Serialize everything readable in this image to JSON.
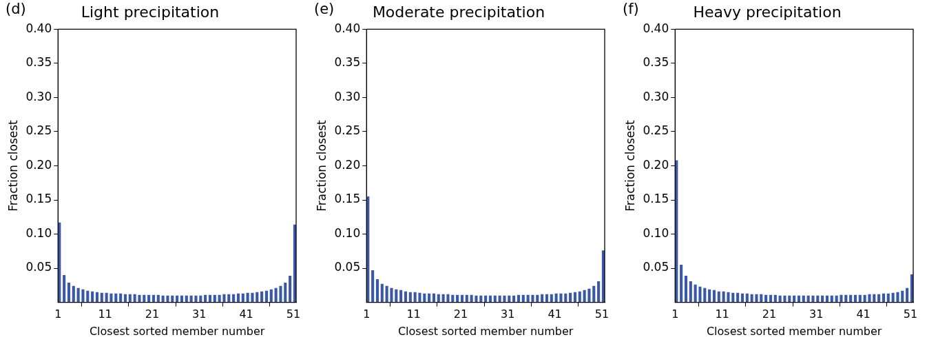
{
  "chart_data": [
    {
      "type": "bar",
      "title": "Light precipitation",
      "annotations": [
        "(d)"
      ],
      "xlabel": "Closest sorted member number",
      "ylabel": "Fraction closest",
      "color": "#3a57a8",
      "grid": false,
      "legend": false,
      "x": [
        1,
        2,
        3,
        4,
        5,
        6,
        7,
        8,
        9,
        10,
        11,
        12,
        13,
        14,
        15,
        16,
        17,
        18,
        19,
        20,
        21,
        22,
        23,
        24,
        25,
        26,
        27,
        28,
        29,
        30,
        31,
        32,
        33,
        34,
        35,
        36,
        37,
        38,
        39,
        40,
        41,
        42,
        43,
        44,
        45,
        46,
        47,
        48,
        49,
        50,
        51
      ],
      "values": [
        0.117,
        0.04,
        0.029,
        0.024,
        0.021,
        0.019,
        0.017,
        0.016,
        0.015,
        0.014,
        0.014,
        0.013,
        0.013,
        0.013,
        0.012,
        0.012,
        0.012,
        0.011,
        0.011,
        0.011,
        0.011,
        0.011,
        0.01,
        0.01,
        0.01,
        0.01,
        0.01,
        0.01,
        0.01,
        0.01,
        0.01,
        0.011,
        0.011,
        0.011,
        0.011,
        0.012,
        0.012,
        0.012,
        0.013,
        0.013,
        0.014,
        0.014,
        0.015,
        0.016,
        0.017,
        0.019,
        0.021,
        0.024,
        0.029,
        0.039,
        0.114
      ],
      "xlim": [
        1,
        51.6
      ],
      "xticks": [
        1,
        11,
        21,
        31,
        41,
        51
      ],
      "ylim": [
        0,
        0.4
      ],
      "yticks": [
        {
          "value": 0.05,
          "label": "0.05"
        },
        {
          "value": 0.1,
          "label": "0.10"
        },
        {
          "value": 0.15,
          "label": "0.15"
        },
        {
          "value": 0.2,
          "label": "0.20"
        },
        {
          "value": 0.25,
          "label": "0.25"
        },
        {
          "value": 0.3,
          "label": "0.30"
        },
        {
          "value": 0.35,
          "label": "0.35"
        },
        {
          "value": 0.4,
          "label": "0.40"
        }
      ]
    },
    {
      "type": "bar",
      "title": "Moderate precipitation",
      "annotations": [
        "(e)"
      ],
      "xlabel": "Closest sorted member number",
      "ylabel": "Fraction closest",
      "color": "#3a57a8",
      "grid": false,
      "legend": false,
      "x": [
        1,
        2,
        3,
        4,
        5,
        6,
        7,
        8,
        9,
        10,
        11,
        12,
        13,
        14,
        15,
        16,
        17,
        18,
        19,
        20,
        21,
        22,
        23,
        24,
        25,
        26,
        27,
        28,
        29,
        30,
        31,
        32,
        33,
        34,
        35,
        36,
        37,
        38,
        39,
        40,
        41,
        42,
        43,
        44,
        45,
        46,
        47,
        48,
        49,
        50,
        51
      ],
      "values": [
        0.155,
        0.047,
        0.034,
        0.027,
        0.024,
        0.021,
        0.019,
        0.018,
        0.016,
        0.015,
        0.015,
        0.014,
        0.013,
        0.013,
        0.013,
        0.012,
        0.012,
        0.012,
        0.011,
        0.011,
        0.011,
        0.011,
        0.011,
        0.01,
        0.01,
        0.01,
        0.01,
        0.01,
        0.01,
        0.01,
        0.01,
        0.01,
        0.011,
        0.011,
        0.011,
        0.011,
        0.011,
        0.012,
        0.012,
        0.012,
        0.013,
        0.013,
        0.013,
        0.014,
        0.015,
        0.016,
        0.018,
        0.02,
        0.024,
        0.031,
        0.076
      ],
      "xlim": [
        1,
        51.6
      ],
      "xticks": [
        1,
        11,
        21,
        31,
        41,
        51
      ],
      "ylim": [
        0,
        0.4
      ],
      "yticks": [
        {
          "value": 0.05,
          "label": "0.05"
        },
        {
          "value": 0.1,
          "label": "0.10"
        },
        {
          "value": 0.15,
          "label": "0.15"
        },
        {
          "value": 0.2,
          "label": "0.20"
        },
        {
          "value": 0.25,
          "label": "0.25"
        },
        {
          "value": 0.3,
          "label": "0.30"
        },
        {
          "value": 0.35,
          "label": "0.35"
        },
        {
          "value": 0.4,
          "label": "0.40"
        }
      ]
    },
    {
      "type": "bar",
      "title": "Heavy precipitation",
      "annotations": [
        "(f)"
      ],
      "xlabel": "Closest sorted member number",
      "ylabel": "Fraction closest",
      "color": "#3a57a8",
      "grid": false,
      "legend": false,
      "x": [
        1,
        2,
        3,
        4,
        5,
        6,
        7,
        8,
        9,
        10,
        11,
        12,
        13,
        14,
        15,
        16,
        17,
        18,
        19,
        20,
        21,
        22,
        23,
        24,
        25,
        26,
        27,
        28,
        29,
        30,
        31,
        32,
        33,
        34,
        35,
        36,
        37,
        38,
        39,
        40,
        41,
        42,
        43,
        44,
        45,
        46,
        47,
        48,
        49,
        50,
        51
      ],
      "values": [
        0.208,
        0.055,
        0.039,
        0.031,
        0.026,
        0.023,
        0.021,
        0.019,
        0.018,
        0.016,
        0.016,
        0.015,
        0.014,
        0.014,
        0.013,
        0.013,
        0.012,
        0.012,
        0.012,
        0.011,
        0.011,
        0.011,
        0.01,
        0.01,
        0.01,
        0.01,
        0.01,
        0.01,
        0.01,
        0.01,
        0.01,
        0.01,
        0.01,
        0.01,
        0.01,
        0.011,
        0.011,
        0.011,
        0.011,
        0.011,
        0.011,
        0.012,
        0.012,
        0.012,
        0.013,
        0.013,
        0.014,
        0.015,
        0.017,
        0.021,
        0.041
      ],
      "xlim": [
        1,
        51.6
      ],
      "xticks": [
        1,
        11,
        21,
        31,
        41,
        51
      ],
      "ylim": [
        0,
        0.4
      ],
      "yticks": [
        {
          "value": 0.05,
          "label": "0.05"
        },
        {
          "value": 0.1,
          "label": "0.10"
        },
        {
          "value": 0.15,
          "label": "0.15"
        },
        {
          "value": 0.2,
          "label": "0.20"
        },
        {
          "value": 0.25,
          "label": "0.25"
        },
        {
          "value": 0.3,
          "label": "0.30"
        },
        {
          "value": 0.35,
          "label": "0.35"
        },
        {
          "value": 0.4,
          "label": "0.40"
        }
      ]
    }
  ]
}
